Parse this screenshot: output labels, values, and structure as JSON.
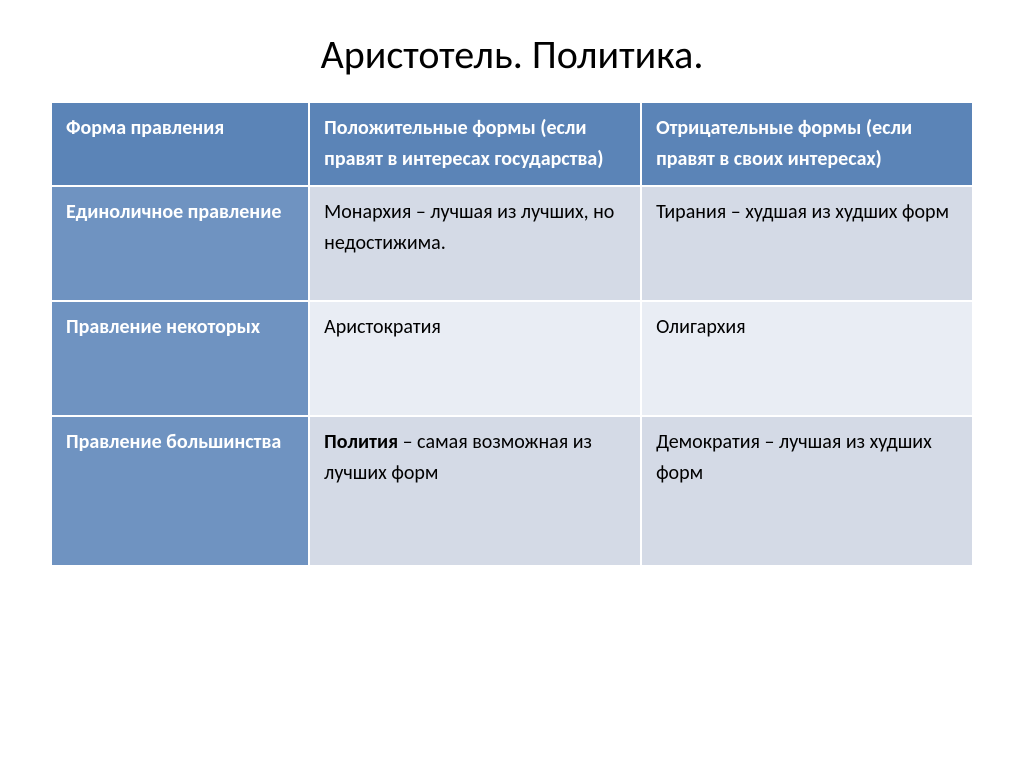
{
  "title": "Аристотель. Политика.",
  "colors": {
    "header_bg": "#5b84b7",
    "rowheader_bg": "#6f93c1",
    "cell_light": "#d4dae6",
    "cell_mid": "#e9edf4"
  },
  "columns": [
    "Форма правления",
    "Положительные формы (если правят в интересах государства)",
    "Отрицательные формы (если правят в своих интересах)"
  ],
  "col_widths": [
    "28%",
    "36%",
    "36%"
  ],
  "row_heights": [
    "115px",
    "115px",
    "150px"
  ],
  "rows": [
    {
      "header": "Единоличное правление",
      "positive": {
        "bold": "",
        "rest": "Монархия – лучшая из лучших, но недостижима."
      },
      "negative": {
        "bold": "",
        "rest": "Тирания – худшая из худших форм"
      }
    },
    {
      "header": "Правление некоторых",
      "positive": {
        "bold": "",
        "rest": "Аристократия"
      },
      "negative": {
        "bold": "",
        "rest": "Олигархия"
      }
    },
    {
      "header": "Правление большинства",
      "positive": {
        "bold": "Полития",
        "rest": " – самая возможная из лучших форм"
      },
      "negative": {
        "bold": "",
        "rest": "Демократия – лучшая из худших форм"
      }
    }
  ]
}
